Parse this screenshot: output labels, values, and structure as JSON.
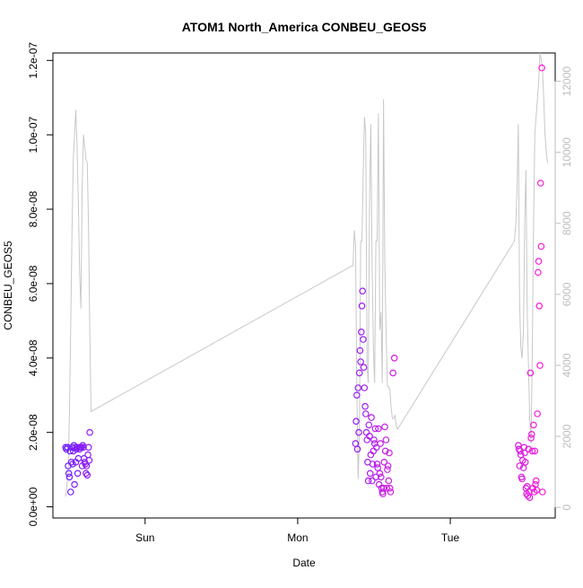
{
  "chart_data": {
    "type": "scatter",
    "title": "ATOM1 North_America CONBEU_GEOS5",
    "xlabel": "Date",
    "ylabel": "CONBEU_GEOS5",
    "x_tick_labels": [
      "Sun",
      "Mon",
      "Tue"
    ],
    "x_ticks_hours": [
      14.5,
      38.5,
      62.5
    ],
    "x_range_hours": [
      0,
      79
    ],
    "y_left": {
      "ticks": [
        0,
        2e-08,
        4e-08,
        6e-08,
        8e-08,
        1e-07,
        1.2e-07
      ],
      "tick_labels": [
        "0.0e+00",
        "2.0e-08",
        "4.0e-08",
        "6.0e-08",
        "8.0e-08",
        "1.0e-07",
        "1.2e-07"
      ],
      "range": [
        -3e-09,
        1.22e-07
      ]
    },
    "y_right": {
      "ticks": [
        0,
        2000,
        4000,
        6000,
        8000,
        10000,
        12000
      ],
      "tick_labels": [
        "0",
        "2000",
        "4000",
        "6000",
        "8000",
        "10000",
        "12000"
      ],
      "range": [
        -300,
        12800
      ]
    },
    "grid": false,
    "colors": {
      "points_start": "#6b1fff",
      "points_end": "#ff1ad9",
      "altitude_line": "#c8c8c8",
      "right_axis": "#bdbdbd",
      "axis": "#000000"
    },
    "series": [
      {
        "kind": "points",
        "x": [
          2.0,
          2.1,
          2.3,
          2.4,
          2.5,
          2.6,
          2.7,
          2.8,
          2.9,
          3.0,
          3.1,
          3.2,
          3.3,
          3.4,
          3.5,
          3.6,
          3.7,
          3.8,
          3.9,
          4.0,
          4.1,
          4.2,
          4.3,
          4.4,
          4.5,
          4.6,
          4.7,
          4.8,
          4.9,
          5.0,
          5.1,
          5.2,
          5.3,
          5.4,
          5.5,
          5.6,
          5.7,
          5.8,
          47.6,
          47.7,
          47.8,
          47.9,
          48.0,
          48.1,
          48.2,
          48.3,
          48.4,
          48.5,
          48.6,
          48.7,
          48.8,
          48.9,
          49.0,
          49.1,
          49.2,
          49.3,
          49.4,
          49.5,
          49.6,
          49.7,
          49.8,
          49.9,
          50.0,
          50.1,
          50.2,
          50.3,
          50.4,
          50.5,
          50.6,
          50.7,
          50.8,
          50.9,
          51.0,
          51.1,
          51.2,
          51.3,
          51.4,
          51.5,
          51.6,
          51.7,
          51.8,
          51.9,
          52.0,
          52.1,
          52.2,
          52.3,
          52.4,
          52.5,
          52.6,
          52.7,
          52.8,
          52.9,
          53.0,
          53.1,
          53.5,
          53.7,
          73.2,
          73.3,
          73.4,
          73.5,
          73.6,
          73.7,
          73.8,
          73.9,
          74.0,
          74.1,
          74.2,
          74.3,
          74.4,
          74.5,
          74.6,
          74.7,
          74.8,
          74.9,
          75.0,
          75.1,
          75.2,
          75.3,
          75.4,
          75.5,
          75.6,
          75.7,
          75.8,
          75.9,
          76.0,
          76.1,
          76.2,
          76.3,
          76.4,
          76.5,
          76.6,
          76.7,
          76.8,
          76.9,
          77.0
        ],
        "y": [
          1.6e-08,
          1.55e-08,
          1.6e-08,
          1.1e-08,
          9e-09,
          8e-09,
          1.5e-08,
          4e-09,
          1.2e-08,
          1.6e-08,
          1.15e-08,
          1.5e-08,
          1.65e-08,
          6e-09,
          1.6e-08,
          1.2e-08,
          1.55e-08,
          1.6e-08,
          9e-09,
          1.3e-08,
          1.6e-08,
          1.55e-08,
          1.6e-08,
          1.6e-08,
          1.6e-08,
          1.1e-08,
          1.65e-08,
          1.6e-08,
          1.3e-08,
          1.2e-08,
          1.15e-08,
          9e-09,
          1.1e-08,
          8.5e-09,
          1.4e-08,
          1.6e-08,
          1.25e-08,
          2e-08,
          1.7e-08,
          2.3e-08,
          3e-08,
          1.55e-08,
          3.2e-08,
          2e-08,
          3.6e-08,
          4.2e-08,
          3.9e-08,
          4.7e-08,
          5.4e-08,
          5.8e-08,
          4.5e-08,
          3.75e-08,
          3.2e-08,
          2.7e-08,
          2.5e-08,
          2e-08,
          1.8e-08,
          1.2e-08,
          7e-09,
          2.2e-08,
          1.9e-08,
          9e-09,
          1.4e-08,
          2.4e-08,
          7e-09,
          1.15e-08,
          1.5e-08,
          1.8e-08,
          1.7e-08,
          2.1e-08,
          8e-09,
          1.6e-08,
          1.15e-08,
          1.05e-08,
          2.1e-08,
          6e-09,
          9e-09,
          1.7e-08,
          8e-09,
          5e-09,
          4e-09,
          3.5e-09,
          5e-09,
          1.2e-08,
          2.15e-08,
          1.5e-08,
          1.8e-08,
          5e-09,
          1e-08,
          1.1e-08,
          7e-09,
          1.45e-08,
          5e-09,
          4e-09,
          3.6e-08,
          4e-08,
          1.65e-08,
          1.55e-08,
          1.1e-08,
          1.5e-08,
          1.4e-08,
          8e-09,
          7.5e-09,
          1.25e-08,
          1.05e-08,
          1.6e-08,
          1.45e-08,
          1.2e-08,
          5e-09,
          3.5e-09,
          5.5e-09,
          3e-09,
          1.55e-08,
          4e-09,
          2.5e-09,
          3.6e-08,
          1.85e-08,
          1.95e-08,
          1.5e-08,
          5e-09,
          2.2e-08,
          4e-09,
          1.5e-08,
          6e-09,
          7e-09,
          4.5e-09,
          2.5e-08,
          6.3e-08,
          6.6e-08,
          5.4e-08,
          3.8e-08,
          8.7e-08,
          7e-08,
          1.18e-07,
          4e-09
        ]
      },
      {
        "kind": "altitude_line",
        "axis": "right",
        "x": [
          2.0,
          2.2,
          2.4,
          2.6,
          2.8,
          3.0,
          3.2,
          3.4,
          3.6,
          3.8,
          4.0,
          4.2,
          4.4,
          4.6,
          4.8,
          5.0,
          5.2,
          5.4,
          5.6,
          5.8,
          6.0,
          47.0,
          47.2,
          47.4,
          47.6,
          47.8,
          48.0,
          48.2,
          48.4,
          48.6,
          48.8,
          49.0,
          49.2,
          49.4,
          49.6,
          49.8,
          50.0,
          50.2,
          50.4,
          50.6,
          50.8,
          51.0,
          51.2,
          51.4,
          51.6,
          51.8,
          52.0,
          52.2,
          52.4,
          52.6,
          52.8,
          53.0,
          53.2,
          53.4,
          53.6,
          53.8,
          54.0,
          54.2,
          72.6,
          72.8,
          73.0,
          73.2,
          73.4,
          73.6,
          73.8,
          74.0,
          74.2,
          74.4,
          74.6,
          74.8,
          75.0,
          75.2,
          75.4,
          75.6,
          75.8,
          76.0,
          76.2,
          76.4,
          76.6,
          76.8,
          77.0,
          77.2,
          77.4,
          77.6,
          77.8
        ],
        "y": [
          300,
          600,
          1000,
          2600,
          5000,
          7800,
          9800,
          10500,
          11200,
          10200,
          8500,
          6600,
          5600,
          9000,
          10500,
          10200,
          9800,
          9700,
          7900,
          5000,
          2700,
          6800,
          6800,
          7800,
          7400,
          3500,
          800,
          2000,
          7500,
          7500,
          9300,
          11000,
          10500,
          4000,
          3500,
          8500,
          10800,
          7000,
          4500,
          3500,
          7500,
          7500,
          11100,
          5000,
          5500,
          3500,
          11500,
          7000,
          5000,
          3400,
          3400,
          3300,
          2800,
          2500,
          2500,
          2600,
          2300,
          2200,
          7500,
          8000,
          9000,
          10800,
          5800,
          4500,
          4200,
          5000,
          8000,
          9500,
          5500,
          4000,
          2500,
          1800,
          4500,
          8000,
          10500,
          11000,
          11500,
          12000,
          12800,
          12600,
          12400,
          11500,
          10500,
          10000,
          9700
        ]
      }
    ]
  }
}
